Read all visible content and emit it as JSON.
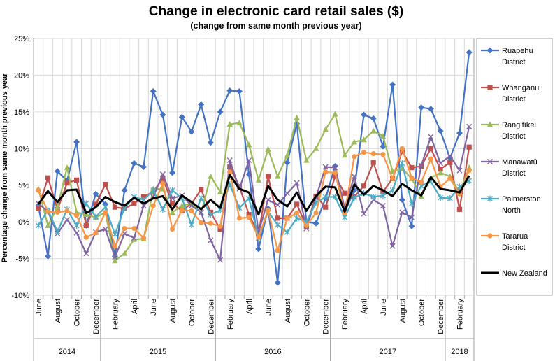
{
  "chart_data": {
    "type": "line",
    "title": "Change in electronic card retail sales ($)",
    "subtitle": "(change from same month previous year)",
    "ylabel": "Percentage change from same month previous year",
    "xlabel": "",
    "ylim": [
      -10,
      25
    ],
    "y_ticks": [
      "-10%",
      "-5%",
      "0%",
      "5%",
      "10%",
      "15%",
      "20%",
      "25%"
    ],
    "y_tick_values": [
      -10,
      -5,
      0,
      5,
      10,
      15,
      20,
      25
    ],
    "grid": true,
    "legend_position": "right",
    "x": [
      "Jun 2014",
      "Jul 2014",
      "Aug 2014",
      "Sep 2014",
      "Oct 2014",
      "Nov 2014",
      "Dec 2014",
      "Jan 2015",
      "Feb 2015",
      "Mar 2015",
      "Apr 2015",
      "May 2015",
      "Jun 2015",
      "Jul 2015",
      "Aug 2015",
      "Sep 2015",
      "Oct 2015",
      "Nov 2015",
      "Dec 2015",
      "Jan 2016",
      "Feb 2016",
      "Mar 2016",
      "Apr 2016",
      "May 2016",
      "Jun 2016",
      "Jul 2016",
      "Aug 2016",
      "Sep 2016",
      "Oct 2016",
      "Nov 2016",
      "Dec 2016",
      "Jan 2017",
      "Feb 2017",
      "Mar 2017",
      "Apr 2017",
      "May 2017",
      "Jun 2017",
      "Jul 2017",
      "Aug 2017",
      "Sep 2017",
      "Oct 2017",
      "Nov 2017",
      "Dec 2017",
      "Jan 2018",
      "Feb 2018",
      "Mar 2018"
    ],
    "x_tick_labels": [
      {
        "label": "June",
        "index": 0
      },
      {
        "label": "August",
        "index": 2
      },
      {
        "label": "October",
        "index": 4
      },
      {
        "label": "December",
        "index": 6
      },
      {
        "label": "February",
        "index": 8
      },
      {
        "label": "April",
        "index": 10
      },
      {
        "label": "June",
        "index": 12
      },
      {
        "label": "August",
        "index": 14
      },
      {
        "label": "October",
        "index": 16
      },
      {
        "label": "December",
        "index": 18
      },
      {
        "label": "February",
        "index": 20
      },
      {
        "label": "April",
        "index": 22
      },
      {
        "label": "June",
        "index": 24
      },
      {
        "label": "August",
        "index": 26
      },
      {
        "label": "October",
        "index": 28
      },
      {
        "label": "December",
        "index": 30
      },
      {
        "label": "February",
        "index": 32
      },
      {
        "label": "April",
        "index": 34
      },
      {
        "label": "June",
        "index": 36
      },
      {
        "label": "August",
        "index": 38
      },
      {
        "label": "October",
        "index": 40
      },
      {
        "label": "December",
        "index": 42
      },
      {
        "label": "February",
        "index": 44
      }
    ],
    "year_groups": [
      {
        "label": "2014",
        "start": 0,
        "end": 6
      },
      {
        "label": "2015",
        "start": 7,
        "end": 18
      },
      {
        "label": "2016",
        "start": 19,
        "end": 30
      },
      {
        "label": "2017",
        "start": 31,
        "end": 42
      },
      {
        "label": "2018",
        "start": 43,
        "end": 45
      }
    ],
    "series": [
      {
        "name": "Ruapehu District",
        "legend_lines": [
          "Ruapehu",
          "District"
        ],
        "color": "#4472C4",
        "marker": "diamond",
        "values": [
          2.2,
          -4.7,
          6.9,
          5.6,
          10.9,
          -0.5,
          3.8,
          2.4,
          -4.7,
          4.3,
          8.0,
          7.5,
          17.8,
          14.6,
          6.7,
          14.3,
          12.3,
          16.0,
          10.8,
          15.0,
          17.9,
          17.8,
          6.5,
          -3.7,
          1.8,
          -8.3,
          8.1,
          13.4,
          0.0,
          -0.2,
          3.2,
          7.6,
          1.3,
          4.3,
          14.6,
          14.1,
          10.3,
          18.7,
          3.0,
          -0.6,
          15.6,
          15.4,
          12.4,
          8.7,
          12.1,
          23.1
        ]
      },
      {
        "name": "Whanganui District",
        "legend_lines": [
          "Whanganui",
          "District"
        ],
        "color": "#C0504D",
        "marker": "square",
        "values": [
          1.8,
          6.0,
          1.7,
          5.3,
          5.7,
          -0.5,
          2.4,
          5.1,
          2.0,
          1.8,
          2.5,
          3.4,
          4.1,
          5.9,
          2.5,
          1.5,
          2.5,
          4.4,
          1.3,
          -1.0,
          7.5,
          4.8,
          1.0,
          -1.7,
          6.2,
          0.5,
          0.5,
          2.4,
          -0.6,
          3.5,
          2.0,
          6.2,
          3.9,
          3.4,
          4.9,
          8.1,
          4.1,
          5.9,
          9.6,
          7.4,
          7.6,
          10.0,
          7.2,
          8.1,
          1.7,
          10.2
        ]
      },
      {
        "name": "Rangitīkei District",
        "legend_lines": [
          "Rangitīkei",
          "District"
        ],
        "color": "#9BBB59",
        "marker": "triangle",
        "values": [
          4.5,
          -0.5,
          2.0,
          7.4,
          1.3,
          1.0,
          0.6,
          1.3,
          -5.3,
          -4.3,
          -2.4,
          -2.3,
          4.5,
          4.5,
          1.3,
          2.2,
          2.5,
          1.2,
          6.2,
          4.1,
          13.3,
          13.5,
          10.5,
          5.7,
          9.9,
          6.2,
          9.1,
          14.2,
          8.4,
          10.0,
          12.6,
          14.7,
          9.1,
          10.9,
          11.2,
          12.4,
          11.7,
          6.9,
          7.3,
          5.9,
          3.5,
          6.0,
          6.7,
          6.2,
          4.0,
          7.4
        ]
      },
      {
        "name": "Manawatū District",
        "legend_lines": [
          "Manawatū",
          "District"
        ],
        "color": "#8064A2",
        "marker": "x",
        "values": [
          2.5,
          1.4,
          -1.6,
          0.3,
          -1.5,
          -4.3,
          -1.4,
          -1.0,
          -4.8,
          -1.6,
          -2.2,
          2.2,
          3.4,
          6.5,
          3.2,
          3.6,
          2.2,
          1.3,
          -2.5,
          -5.2,
          8.4,
          4.5,
          8.4,
          -1.4,
          3.0,
          2.3,
          3.9,
          5.3,
          -0.9,
          3.3,
          7.5,
          7.4,
          1.9,
          6.2,
          1.1,
          3.0,
          2.2,
          -3.3,
          1.3,
          0.6,
          7.7,
          11.6,
          8.0,
          9.0,
          7.0,
          13.0
        ]
      },
      {
        "name": "Palmerston North",
        "legend_lines": [
          "Palmerston",
          "North"
        ],
        "color": "#4BACC6",
        "marker": "asterisk",
        "values": [
          -0.5,
          1.6,
          -1.3,
          1.7,
          -0.5,
          2.5,
          0.7,
          2.0,
          -1.7,
          1.9,
          3.4,
          3.0,
          4.3,
          1.7,
          4.3,
          3.2,
          -0.4,
          3.3,
          1.0,
          1.6,
          5.1,
          1.9,
          3.2,
          -2.2,
          1.4,
          -0.4,
          -1.4,
          0.5,
          0.0,
          2.6,
          3.4,
          3.4,
          0.6,
          3.3,
          3.9,
          3.4,
          3.6,
          4.3,
          8.0,
          2.5,
          4.9,
          5.5,
          3.3,
          3.2,
          4.8,
          5.6
        ]
      },
      {
        "name": "Tararua District",
        "legend_lines": [
          "Tararua",
          "District"
        ],
        "color": "#F79646",
        "marker": "circle",
        "values": [
          4.3,
          1.4,
          1.3,
          1.5,
          0.9,
          -2.1,
          -1.5,
          1.3,
          -3.3,
          -0.9,
          -0.9,
          -2.2,
          2.2,
          5.2,
          -1.0,
          1.6,
          1.5,
          -0.1,
          -0.2,
          -0.6,
          6.8,
          0.5,
          0.6,
          -2.1,
          1.6,
          -3.9,
          0.5,
          1.2,
          -0.5,
          1.2,
          6.8,
          6.7,
          1.2,
          8.9,
          9.5,
          9.3,
          9.2,
          5.9,
          10.0,
          6.0,
          5.4,
          8.6,
          4.8,
          5.9,
          3.8,
          7.0
        ]
      },
      {
        "name": "New Zealand",
        "legend_lines": [
          "New Zealand"
        ],
        "color": "#000000",
        "marker": "none",
        "values": [
          2.4,
          4.2,
          2.7,
          4.3,
          4.4,
          1.2,
          2.0,
          3.4,
          2.7,
          2.2,
          3.3,
          2.5,
          3.2,
          3.5,
          1.7,
          3.6,
          2.7,
          1.7,
          3.0,
          1.9,
          6.4,
          4.5,
          4.0,
          1.0,
          4.9,
          3.0,
          2.1,
          4.0,
          1.5,
          3.5,
          4.8,
          4.7,
          1.4,
          5.1,
          3.7,
          4.9,
          4.3,
          3.5,
          5.2,
          4.3,
          3.6,
          6.1,
          4.5,
          4.3,
          4.0,
          6.3
        ]
      }
    ]
  }
}
